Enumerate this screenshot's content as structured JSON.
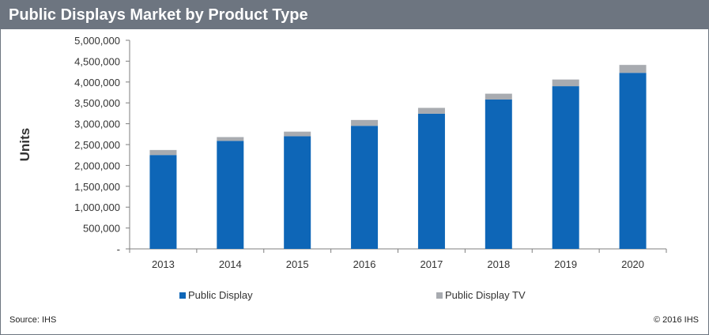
{
  "title": "Public Displays Market by Product Type",
  "source": "Source: IHS",
  "copyright": "© 2016 IHS",
  "chart_data": {
    "type": "bar",
    "stacked": true,
    "categories": [
      "2013",
      "2014",
      "2015",
      "2016",
      "2017",
      "2018",
      "2019",
      "2020"
    ],
    "series": [
      {
        "name": "Public Display",
        "color": "#0e66b7",
        "values": [
          2250000,
          2590000,
          2700000,
          2950000,
          3240000,
          3580000,
          3900000,
          4220000
        ]
      },
      {
        "name": "Public Display TV",
        "color": "#a8abb0",
        "values": [
          120000,
          90000,
          110000,
          140000,
          140000,
          140000,
          160000,
          190000
        ]
      }
    ],
    "ylabel": "Units",
    "xlabel": "",
    "ylim": [
      0,
      5000000
    ],
    "yticks": [
      "-",
      "500,000",
      "1,000,000",
      "1,500,000",
      "2,000,000",
      "2,500,000",
      "3,000,000",
      "3,500,000",
      "4,000,000",
      "4,500,000",
      "5,000,000"
    ],
    "grid": false,
    "legend": "bottom"
  }
}
